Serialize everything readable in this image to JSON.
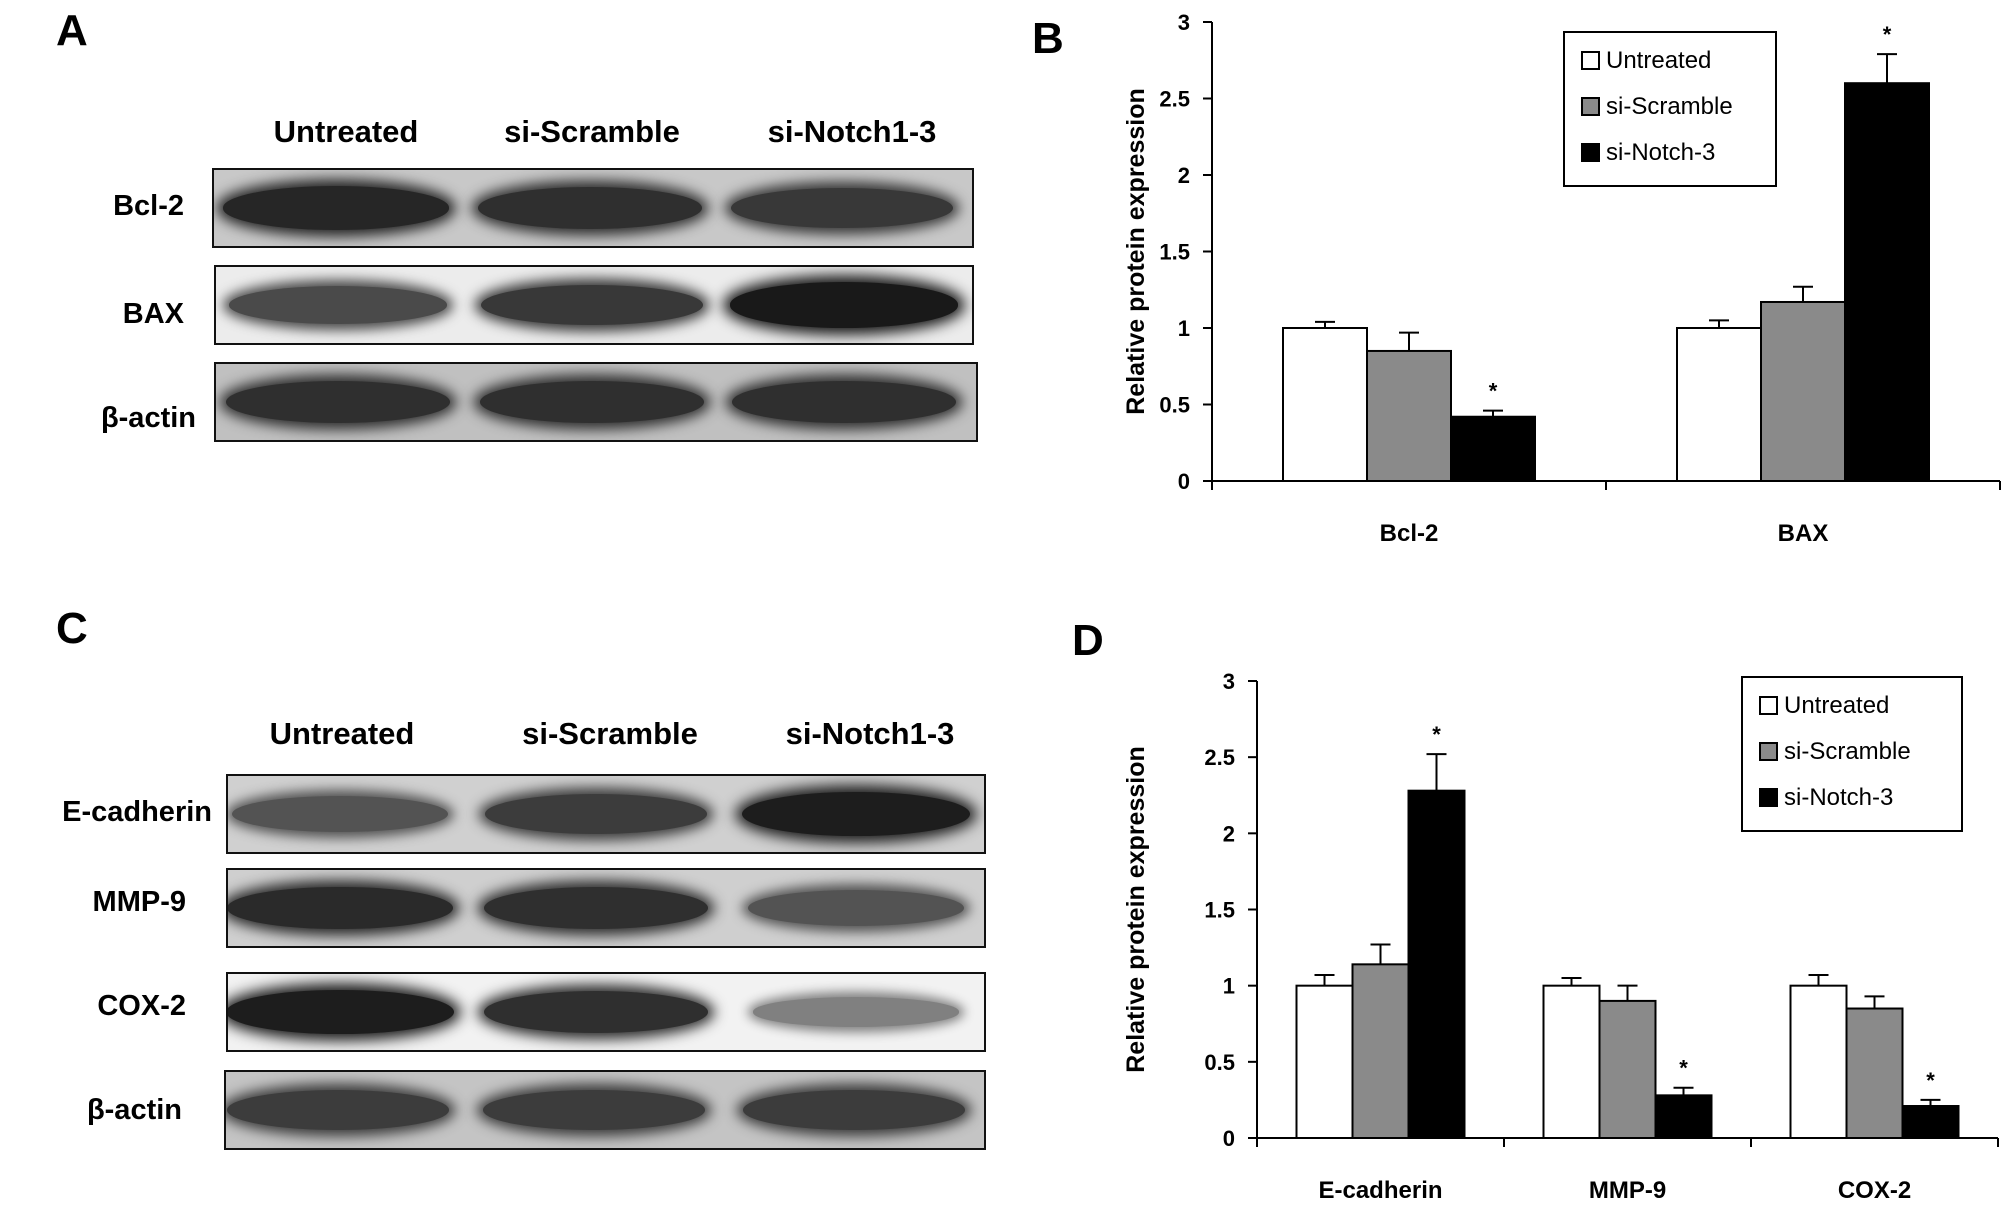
{
  "panels": {
    "A": {
      "letter": "A"
    },
    "B": {
      "letter": "B"
    },
    "C": {
      "letter": "C"
    },
    "D": {
      "letter": "D"
    }
  },
  "blots": [
    {
      "headers": [
        "Untreated",
        "si-Scramble",
        "si-Notch1-3"
      ],
      "rows": [
        {
          "label": "Bcl-2",
          "intensity": [
            0.9,
            0.85,
            0.8
          ]
        },
        {
          "label": "BAX",
          "intensity": [
            0.7,
            0.8,
            0.97
          ]
        },
        {
          "label": "β-actin",
          "intensity": [
            0.85,
            0.85,
            0.85
          ]
        }
      ]
    },
    {
      "headers": [
        "Untreated",
        "si-Scramble",
        "si-Notch1-3"
      ],
      "rows": [
        {
          "label": "E-cadherin",
          "intensity": [
            0.65,
            0.78,
            0.95
          ]
        },
        {
          "label": "MMP-9",
          "intensity": [
            0.88,
            0.85,
            0.65
          ]
        },
        {
          "label": "COX-2",
          "intensity": [
            0.95,
            0.85,
            0.4
          ]
        },
        {
          "label": "β-actin",
          "intensity": [
            0.78,
            0.78,
            0.78
          ]
        }
      ]
    }
  ],
  "chart_data": [
    {
      "type": "bar",
      "title": "",
      "xlabel": "",
      "ylabel": "Relative protein expression",
      "ylim": [
        0,
        3
      ],
      "yticks": [
        "0",
        "0.5",
        "1",
        "1.5",
        "2",
        "2.5",
        "3"
      ],
      "categories": [
        "Bcl-2",
        "BAX"
      ],
      "series": [
        {
          "name": "Untreated",
          "color": "#ffffff",
          "values": [
            1.0,
            1.0
          ],
          "errors": [
            0.04,
            0.05
          ],
          "significant": [
            false,
            false
          ]
        },
        {
          "name": "si-Scramble",
          "color": "#8a8a8a",
          "values": [
            0.85,
            1.17
          ],
          "errors": [
            0.12,
            0.1
          ],
          "significant": [
            false,
            false
          ]
        },
        {
          "name": "si-Notch-3",
          "color": "#000000",
          "values": [
            0.42,
            2.6
          ],
          "errors": [
            0.04,
            0.19
          ],
          "significant": [
            true,
            true
          ]
        }
      ],
      "significance_marker": "*",
      "legend": "top-right"
    },
    {
      "type": "bar",
      "title": "",
      "xlabel": "",
      "ylabel": "Relative protein expression",
      "ylim": [
        0,
        3
      ],
      "yticks": [
        "0",
        "0.5",
        "1",
        "1.5",
        "2",
        "2.5",
        "3"
      ],
      "categories": [
        "E-cadherin",
        "MMP-9",
        "COX-2"
      ],
      "series": [
        {
          "name": "Untreated",
          "color": "#ffffff",
          "values": [
            1.0,
            1.0,
            1.0
          ],
          "errors": [
            0.07,
            0.05,
            0.07
          ],
          "significant": [
            false,
            false,
            false
          ]
        },
        {
          "name": "si-Scramble",
          "color": "#8a8a8a",
          "values": [
            1.14,
            0.9,
            0.85
          ],
          "errors": [
            0.13,
            0.1,
            0.08
          ],
          "significant": [
            false,
            false,
            false
          ]
        },
        {
          "name": "si-Notch-3",
          "color": "#000000",
          "values": [
            2.28,
            0.28,
            0.21
          ],
          "errors": [
            0.24,
            0.05,
            0.04
          ],
          "significant": [
            true,
            true,
            true
          ]
        }
      ],
      "significance_marker": "*",
      "legend": "top-right"
    }
  ]
}
